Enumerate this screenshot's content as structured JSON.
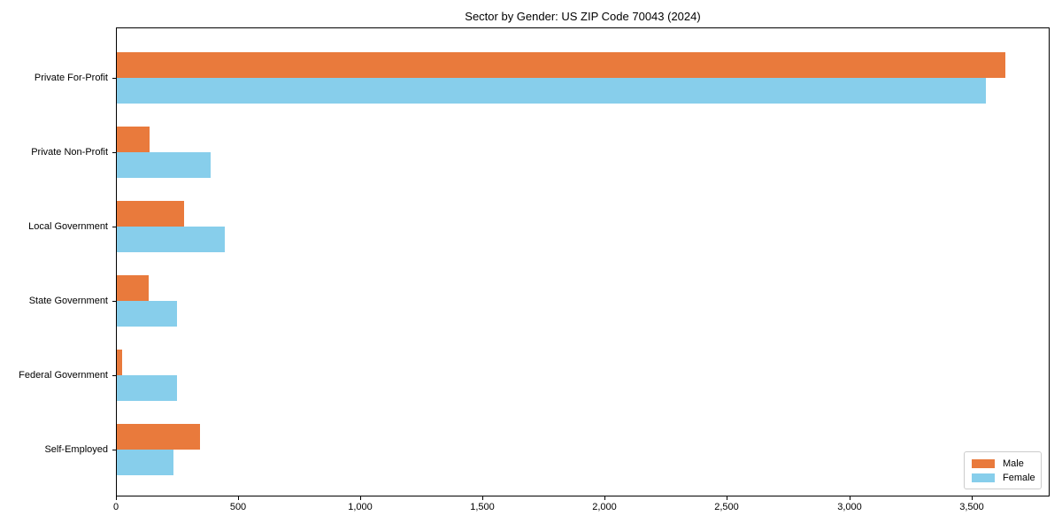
{
  "title": "Sector by Gender: US ZIP Code 70043 (2024)",
  "colors": {
    "male": "#e97a3c",
    "female": "#87ceeb",
    "axis": "#000000",
    "legend_border": "#cccccc",
    "background": "#ffffff"
  },
  "chart_data": {
    "type": "bar",
    "orientation": "horizontal",
    "title": "Sector by Gender: US ZIP Code 70043 (2024)",
    "categories": [
      "Private For-Profit",
      "Private Non-Profit",
      "Local Government",
      "State Government",
      "Federal Government",
      "Self-Employed"
    ],
    "series": [
      {
        "name": "Male",
        "color": "#e97a3c",
        "values": [
          3635,
          135,
          275,
          130,
          20,
          340
        ]
      },
      {
        "name": "Female",
        "color": "#87ceeb",
        "values": [
          3555,
          385,
          440,
          245,
          245,
          230
        ]
      }
    ],
    "xlabel": "",
    "ylabel": "",
    "xlim": [
      0,
      3820
    ],
    "xticks": [
      0,
      500,
      1000,
      1500,
      2000,
      2500,
      3000,
      3500
    ],
    "xtick_labels": [
      "0",
      "500",
      "1,000",
      "1,500",
      "2,000",
      "2,500",
      "3,000",
      "3,500"
    ],
    "grid": false,
    "legend": {
      "position": "lower right",
      "entries": [
        "Male",
        "Female"
      ]
    }
  }
}
